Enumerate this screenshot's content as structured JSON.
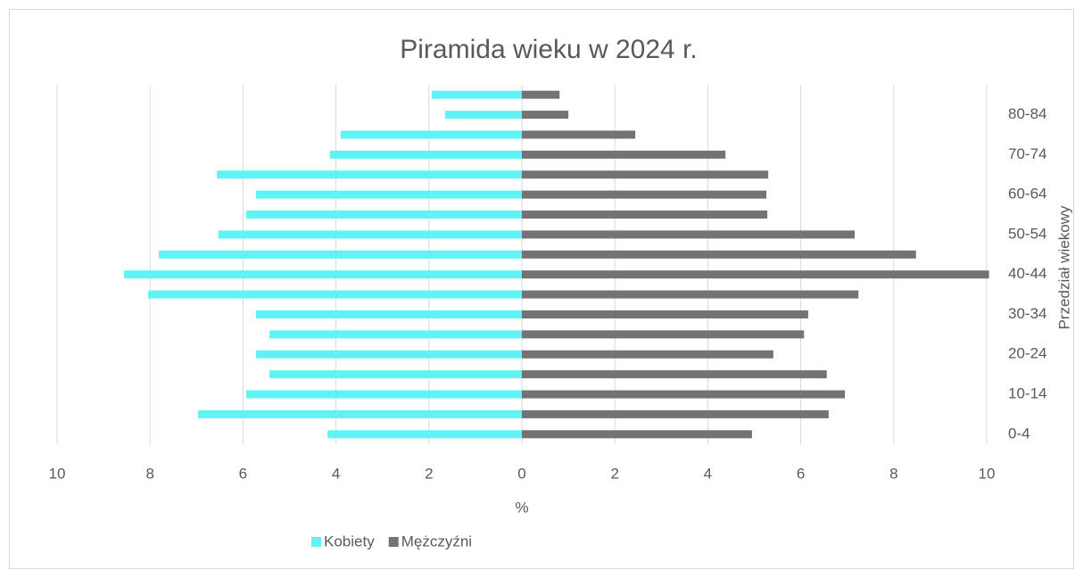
{
  "chart_data": {
    "type": "bar",
    "orientation": "horizontal",
    "title": "Piramida wieku w 2024 r.",
    "x_label": "%",
    "y_label": "Przedział wiekowy",
    "categories": [
      "0-4",
      null,
      "10-14",
      null,
      "20-24",
      null,
      "30-34",
      null,
      "40-44",
      null,
      "50-54",
      null,
      "60-64",
      null,
      "70-74",
      null,
      "80-84",
      null
    ],
    "series": [
      {
        "name": "Kobiety",
        "color": "#5ff3f5",
        "values": [
          -4.18,
          -6.97,
          -5.93,
          -5.43,
          -5.72,
          -5.43,
          -5.72,
          -8.04,
          -8.56,
          -7.81,
          -6.53,
          -5.93,
          -5.72,
          -6.56,
          -4.13,
          -3.9,
          -1.65,
          -1.94
        ]
      },
      {
        "name": "Mężczyźni",
        "color": "#737373",
        "values": [
          4.95,
          6.6,
          6.95,
          6.56,
          5.41,
          6.07,
          6.16,
          7.24,
          10.05,
          8.48,
          7.16,
          5.28,
          5.26,
          5.3,
          4.38,
          2.44,
          1.0,
          0.81
        ]
      }
    ],
    "xlim": [
      -10,
      10
    ],
    "xticks": [
      {
        "value": -10,
        "label": "10"
      },
      {
        "value": -8,
        "label": "8"
      },
      {
        "value": -6,
        "label": "6"
      },
      {
        "value": -4,
        "label": "4"
      },
      {
        "value": -2,
        "label": "2"
      },
      0,
      2,
      4,
      6,
      8,
      10
    ],
    "grid": true,
    "legend": "bottom"
  }
}
